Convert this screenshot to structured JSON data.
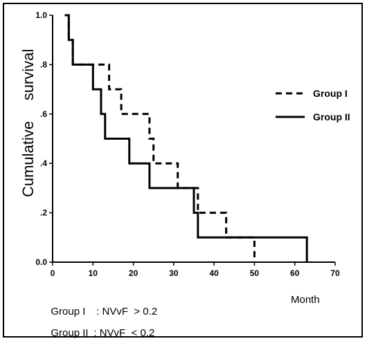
{
  "chart_data": {
    "type": "line",
    "subtype": "kaplan-meier step",
    "title": "",
    "xlabel": "Month",
    "ylabel_parts": [
      "Cumulative",
      "survival"
    ],
    "xlim": [
      0,
      70
    ],
    "ylim": [
      0,
      1
    ],
    "xticks": [
      "0",
      "10",
      "20",
      "30",
      "40",
      "50",
      "60",
      "70"
    ],
    "yticks": [
      "0.0",
      ".2",
      ".4",
      ".6",
      ".8",
      "1.0"
    ],
    "ytick_values": [
      0,
      0.2,
      0.4,
      0.6,
      0.8,
      1.0
    ],
    "grid": false,
    "legend_position": "right",
    "series": [
      {
        "name": "Group I",
        "style": "dashed",
        "x": [
          3,
          4,
          5,
          10,
          14,
          17,
          24,
          25,
          31,
          36,
          43,
          50
        ],
        "y": [
          1.0,
          0.9,
          0.8,
          0.8,
          0.7,
          0.6,
          0.5,
          0.4,
          0.3,
          0.2,
          0.1,
          0.0
        ]
      },
      {
        "name": "Group II",
        "style": "solid",
        "x": [
          3,
          4,
          5,
          10,
          12,
          13,
          19,
          24,
          35,
          36,
          63
        ],
        "y": [
          1.0,
          0.9,
          0.8,
          0.7,
          0.6,
          0.5,
          0.4,
          0.3,
          0.2,
          0.1,
          0.0
        ]
      }
    ]
  },
  "footnotes": [
    {
      "group": "Group I",
      "sep": ":",
      "criterion": "NVvF  > 0.2"
    },
    {
      "group": "Group II",
      "sep": ":",
      "criterion": "NVvF  < 0.2"
    }
  ]
}
